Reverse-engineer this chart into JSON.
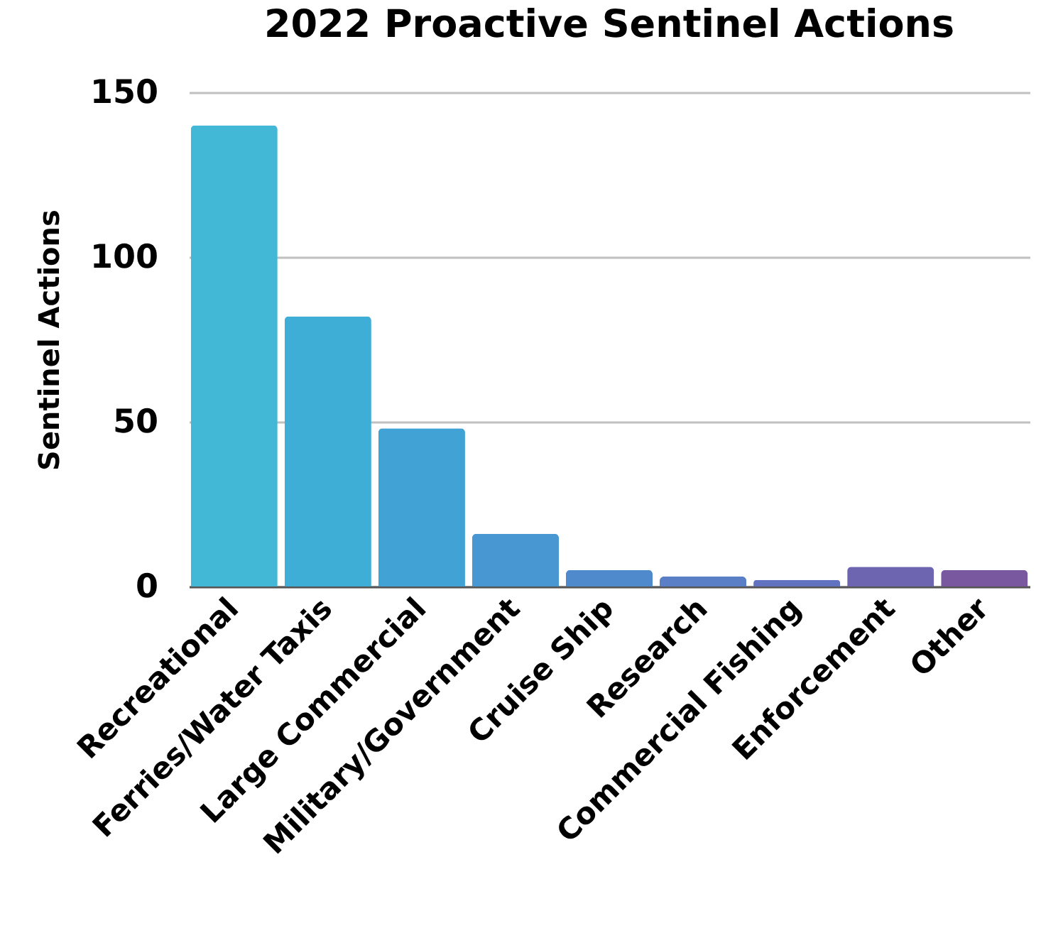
{
  "chart_data": {
    "type": "bar",
    "title": "2022 Proactive Sentinel Actions",
    "ylabel": "Sentinel Actions",
    "categories": [
      "Recreational",
      "Ferries/Water Taxis",
      "Large Commercial",
      "Military/Government",
      "Cruise Ship",
      "Research",
      "Commercial Fishing",
      "Enforcement",
      "Other"
    ],
    "values": [
      140,
      82,
      48,
      16,
      5,
      3,
      2,
      6,
      5
    ],
    "colors": [
      "#42b8d6",
      "#3eaed6",
      "#40a2d5",
      "#4896d2",
      "#4f8bcc",
      "#5a7fc6",
      "#6173c0",
      "#6e65b0",
      "#7a58a0"
    ],
    "ylim": [
      0,
      150
    ],
    "yticks": [
      0,
      50,
      100,
      150
    ],
    "grid": "y"
  }
}
